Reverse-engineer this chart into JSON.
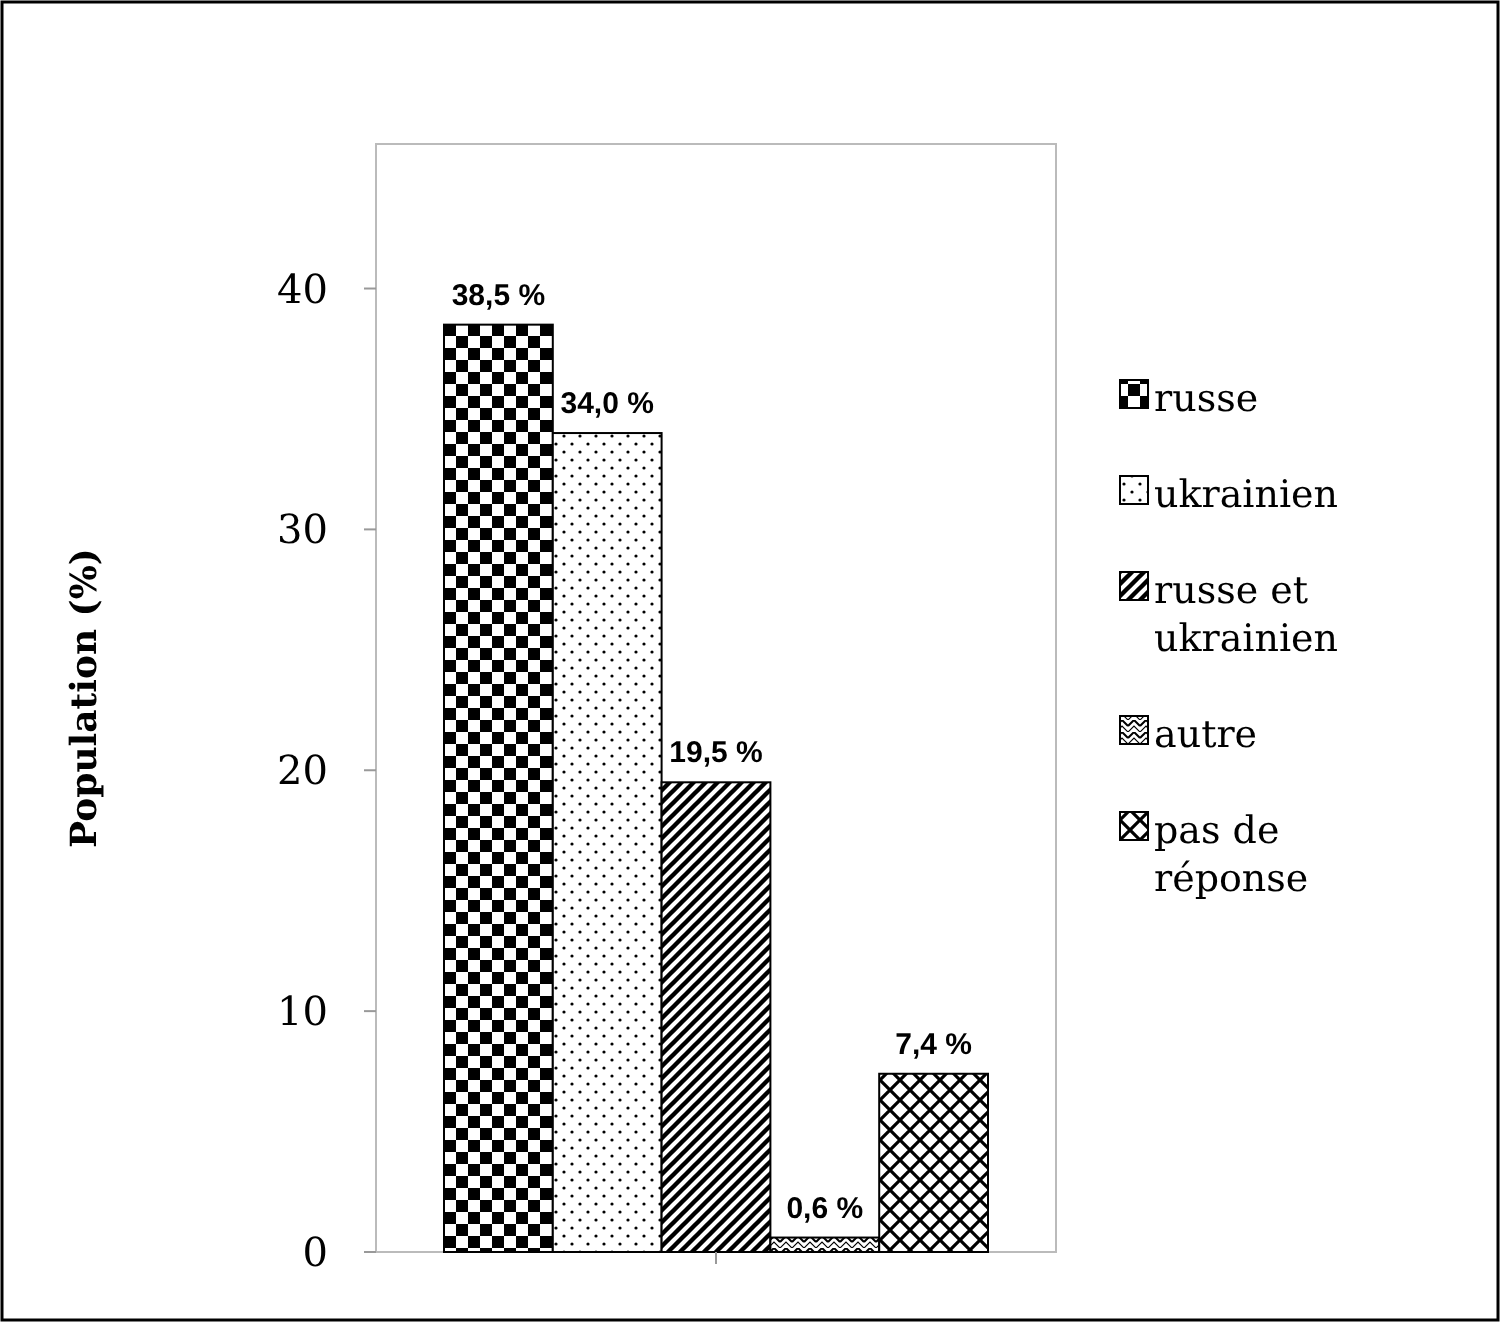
{
  "chart_data": {
    "type": "bar",
    "ylabel": "Population (%)",
    "categories": [
      null
    ],
    "series": [
      {
        "name": "russe",
        "color": "#000000",
        "values": [
          38.5
        ],
        "value_labels": [
          "38,5 %"
        ]
      },
      {
        "name": "ukrainien",
        "color": "#000000",
        "values": [
          34.0
        ],
        "value_labels": [
          "34,0 %"
        ]
      },
      {
        "name": "russe et ukrainien",
        "color": "#000000",
        "values": [
          19.5
        ],
        "value_labels": [
          "19,5 %"
        ]
      },
      {
        "name": "autre",
        "color": "#000000",
        "values": [
          0.6
        ],
        "value_labels": [
          "0,6 %"
        ]
      },
      {
        "name": "pas de réponse",
        "color": "#000000",
        "values": [
          7.4
        ],
        "value_labels": [
          "7,4 %"
        ]
      }
    ],
    "ylim": [
      0,
      46
    ],
    "yticks": [
      0,
      10,
      20,
      30,
      40
    ],
    "grid": false,
    "legend": "right"
  }
}
